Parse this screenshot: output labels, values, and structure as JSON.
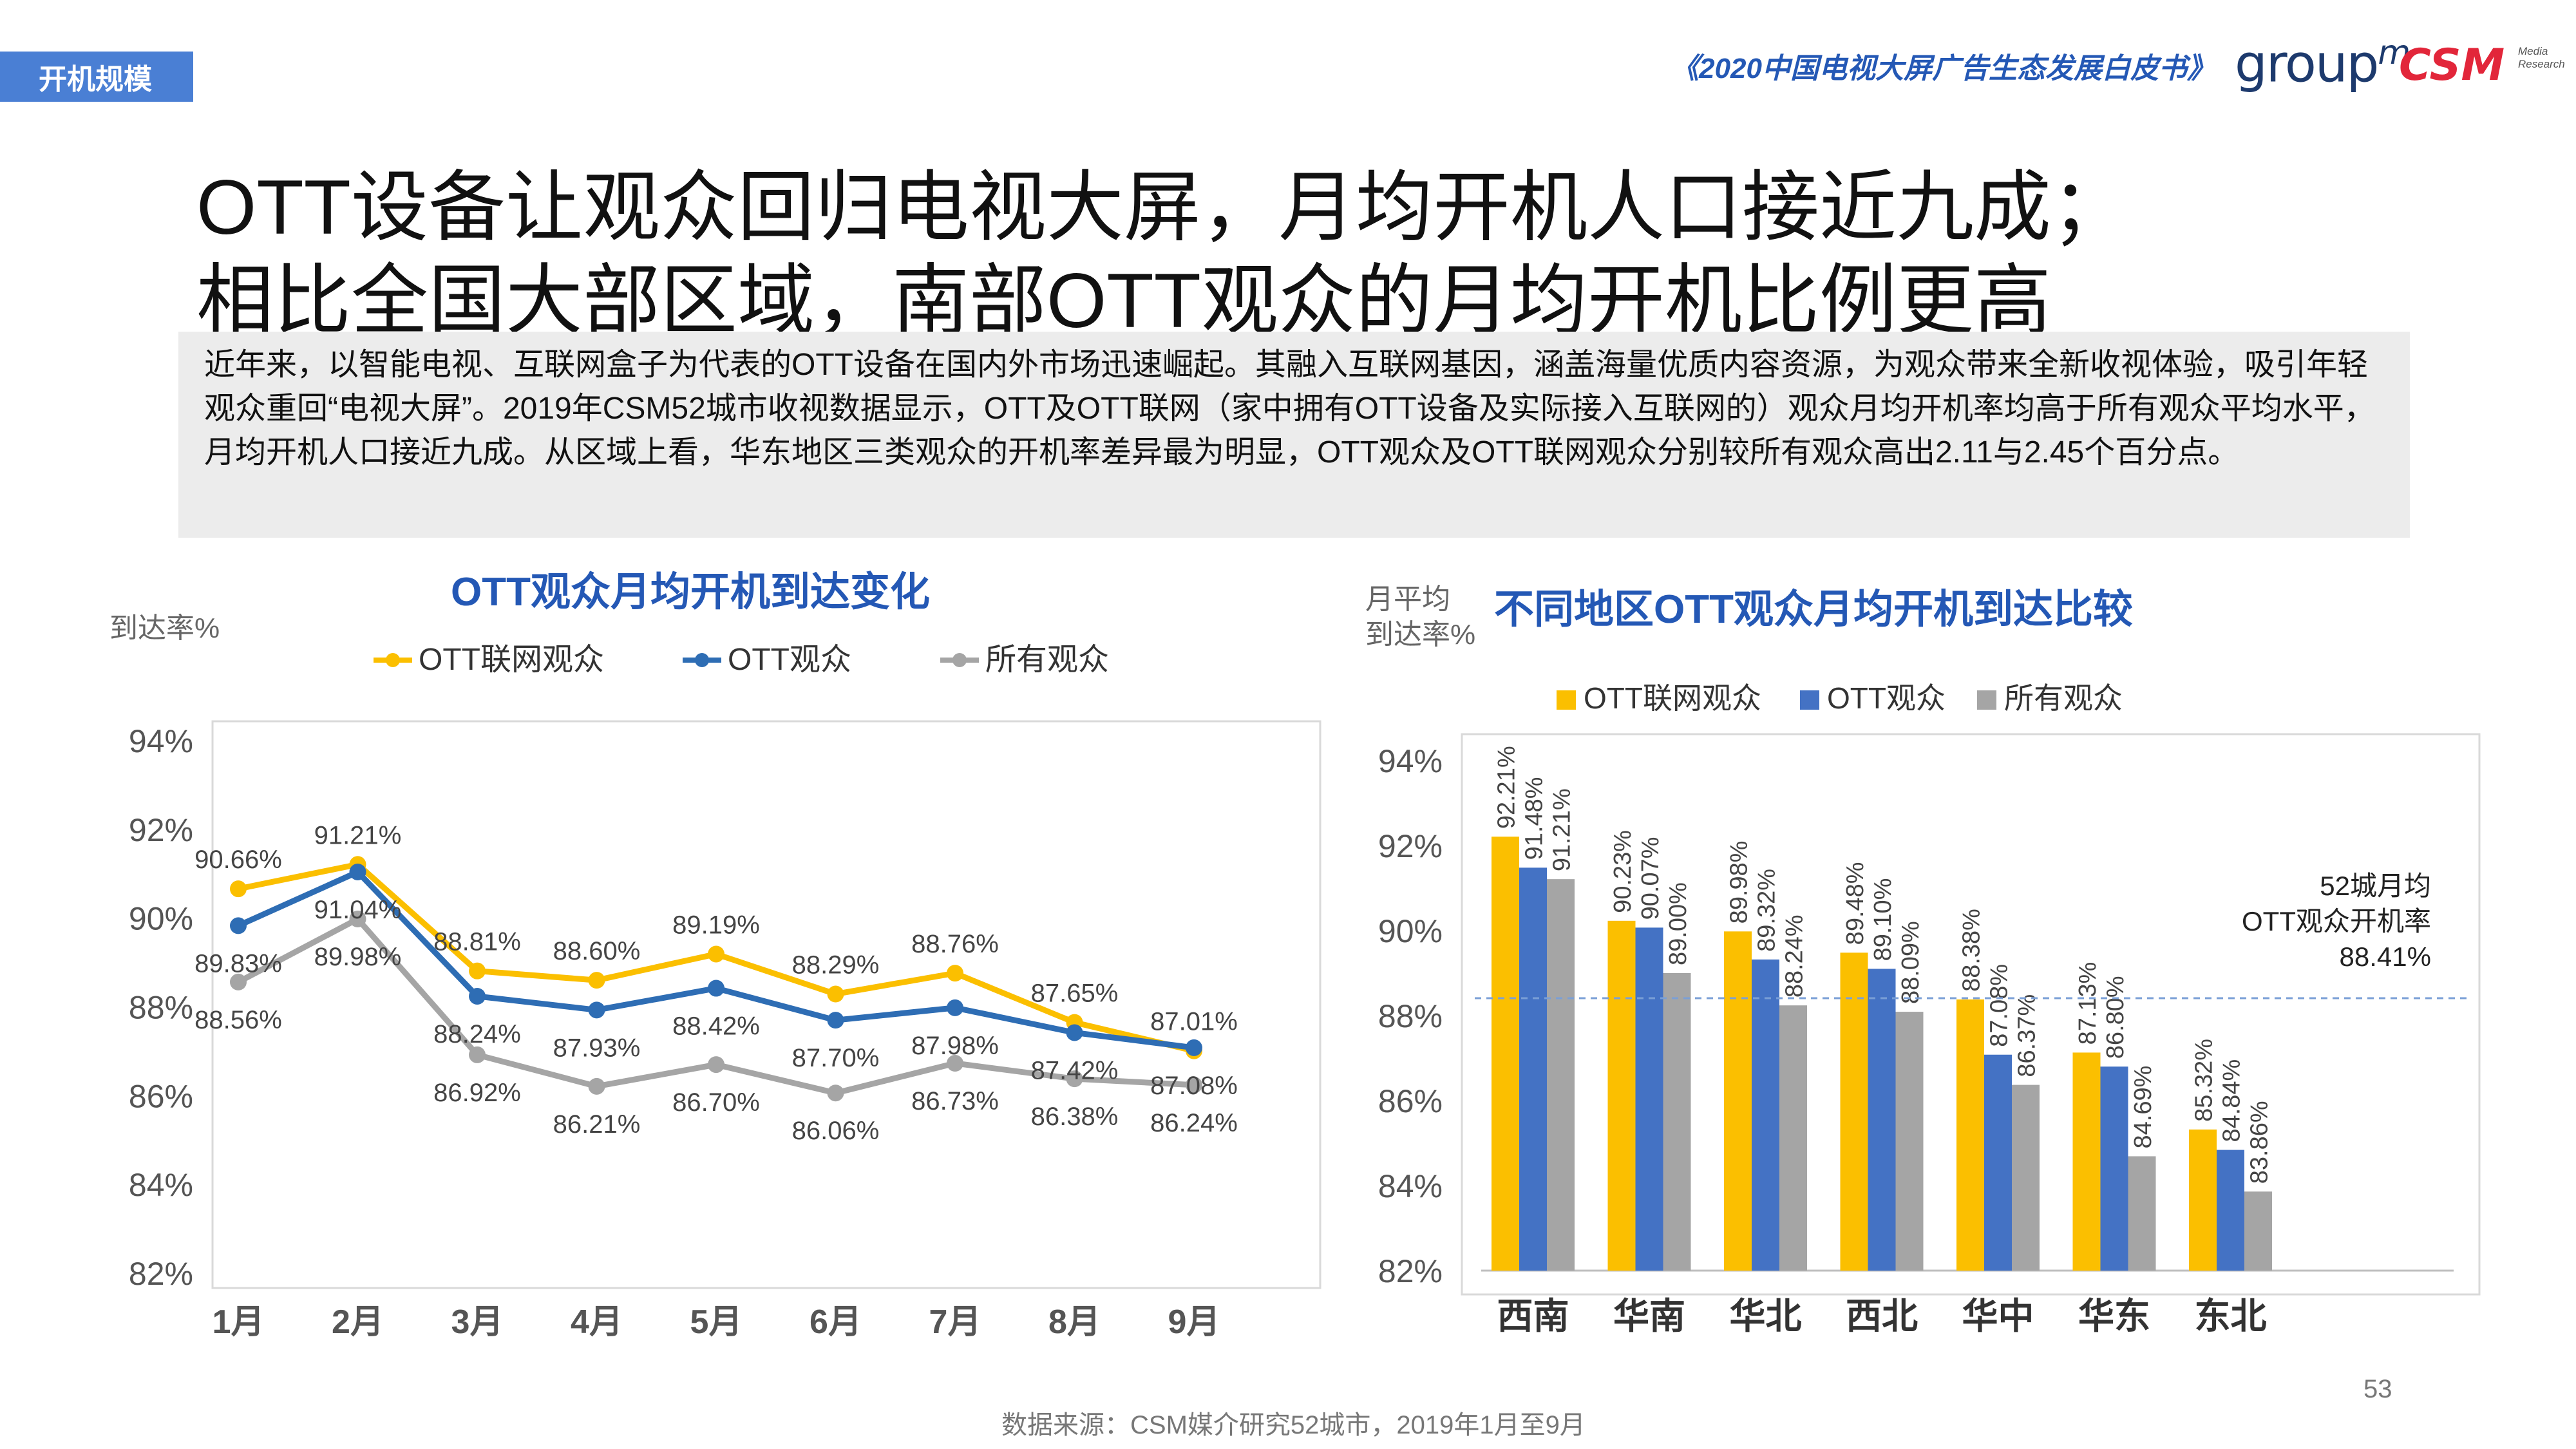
{
  "header": {
    "section_tag": "开机规模",
    "report_name": "《2020中国电视大屏广告生态发展白皮书》",
    "logo_groupm": "group",
    "logo_groupm_m": "m",
    "logo_csm": "CSM",
    "logo_csm_sub1": "Media",
    "logo_csm_sub2": "Research"
  },
  "headline": {
    "line1": "OTT设备让观众回归电视大屏，月均开机人口接近九成；",
    "line2": "相比全国大部区域，南部OTT观众的月均开机比例更高"
  },
  "summary": "近年来，以智能电视、互联网盒子为代表的OTT设备在国内外市场迅速崛起。其融入互联网基因，涵盖海量优质内容资源，为观众带来全新收视体验，吸引年轻观众重回“电视大屏”。2019年CSM52城市收视数据显示，OTT及OTT联网（家中拥有OTT设备及实际接入互联网的）观众月均开机率均高于所有观众平均水平，月均开机人口接近九成。从区域上看，华东地区三类观众的开机率差异最为明显，OTT观众及OTT联网观众分别较所有观众高出2.11与2.45个百分点。",
  "colors": {
    "ott_net": "#fbbf00",
    "ott": "#2e6db4",
    "all": "#a5a5a5",
    "ott_bar": "#4472c4",
    "accent": "#4a7fd4",
    "title": "#2458b5"
  },
  "chart_data": [
    {
      "type": "line",
      "title": "OTT观众月均开机到达变化",
      "ylabel": "到达率%",
      "xlabel": "",
      "categories": [
        "1月",
        "2月",
        "3月",
        "4月",
        "5月",
        "6月",
        "7月",
        "8月",
        "9月"
      ],
      "ylim": [
        82,
        94
      ],
      "yticks": [
        "82%",
        "84%",
        "86%",
        "88%",
        "90%",
        "92%",
        "94%"
      ],
      "grid": false,
      "legend": "top",
      "series": [
        {
          "name": "OTT联网观众",
          "values": [
            90.66,
            91.21,
            88.81,
            88.6,
            89.19,
            88.29,
            88.76,
            87.65,
            87.01
          ]
        },
        {
          "name": "OTT观众",
          "values": [
            89.83,
            91.04,
            88.24,
            87.93,
            88.42,
            87.7,
            87.98,
            87.42,
            87.08
          ]
        },
        {
          "name": "所有观众",
          "values": [
            88.56,
            89.98,
            86.92,
            86.21,
            86.7,
            86.06,
            86.73,
            86.38,
            86.24
          ]
        }
      ]
    },
    {
      "type": "bar",
      "title": "不同地区OTT观众月均开机到达比较",
      "ylabel_line1": "月平均",
      "ylabel_line2": "到达率%",
      "xlabel": "",
      "categories": [
        "西南",
        "华南",
        "华北",
        "西北",
        "华中",
        "华东",
        "东北"
      ],
      "ylim": [
        82,
        94
      ],
      "yticks": [
        "82%",
        "84%",
        "86%",
        "88%",
        "90%",
        "92%",
        "94%"
      ],
      "grid": false,
      "legend": "top",
      "series": [
        {
          "name": "OTT联网观众",
          "values": [
            92.21,
            90.23,
            89.98,
            89.48,
            88.38,
            87.13,
            85.32
          ]
        },
        {
          "name": "OTT观众",
          "values": [
            91.48,
            90.07,
            89.32,
            89.1,
            87.08,
            86.8,
            84.84
          ]
        },
        {
          "name": "所有观众",
          "values": [
            91.21,
            89.0,
            88.24,
            88.09,
            86.37,
            84.69,
            83.86
          ]
        }
      ],
      "reference_line": {
        "value": 88.41,
        "label_line1": "52城月均",
        "label_line2": "OTT观众开机率",
        "label_line3": "88.41%"
      }
    }
  ],
  "footer": {
    "page_number": "53",
    "source": "数据来源：CSM媒介研究52城市，2019年1月至9月"
  }
}
